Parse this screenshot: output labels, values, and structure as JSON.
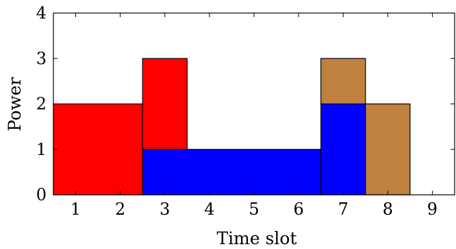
{
  "chart_data": {
    "type": "bar",
    "xlabel": "Time slot",
    "ylabel": "Power",
    "xlim": [
      0.5,
      9.5
    ],
    "ylim": [
      0,
      4
    ],
    "x_ticks": [
      "1",
      "2",
      "3",
      "4",
      "5",
      "6",
      "7",
      "8",
      "9"
    ],
    "y_ticks": [
      "0",
      "1",
      "2",
      "3",
      "4"
    ],
    "grid": false,
    "legend": "none",
    "colors": {
      "red": "#ff0000",
      "blue": "#0000ff",
      "brown": "#bf8040"
    },
    "blocks": [
      {
        "color": "red",
        "slots": [
          1,
          2
        ],
        "y0": 0,
        "y1": 2
      },
      {
        "color": "red",
        "slots": [
          3
        ],
        "y0": 1,
        "y1": 3
      },
      {
        "color": "blue",
        "slots": [
          3,
          4,
          5,
          6
        ],
        "y0": 0,
        "y1": 1
      },
      {
        "color": "blue",
        "slots": [
          7
        ],
        "y0": 0,
        "y1": 2
      },
      {
        "color": "brown",
        "slots": [
          7
        ],
        "y0": 2,
        "y1": 3
      },
      {
        "color": "brown",
        "slots": [
          8
        ],
        "y0": 0,
        "y1": 2
      }
    ]
  }
}
